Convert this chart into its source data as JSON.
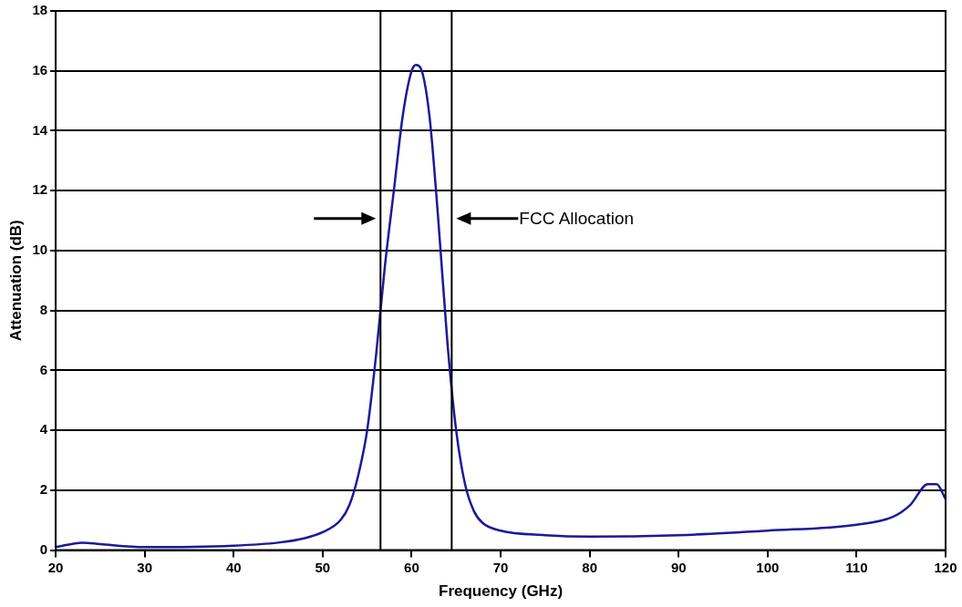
{
  "chart_data": {
    "type": "line",
    "xlabel": "Frequency (GHz)",
    "ylabel": "Attenuation (dB)",
    "xlim": [
      20,
      120
    ],
    "xticks": [
      20,
      30,
      40,
      50,
      60,
      70,
      80,
      90,
      100,
      110,
      120
    ],
    "ylim": [
      0,
      18
    ],
    "yticks": [
      0,
      2,
      4,
      6,
      8,
      10,
      12,
      14,
      16,
      18
    ],
    "grid": "y",
    "legend": false,
    "marker": "none",
    "line_style": "solid",
    "series": [
      {
        "color": "#1a1a99",
        "x": [
          20,
          23,
          25,
          30,
          40,
          45,
          48,
          50,
          52,
          53,
          54,
          55,
          56,
          57,
          58,
          59,
          60,
          60.5,
          61,
          62,
          63,
          64,
          65,
          66,
          67,
          68,
          70,
          75,
          80,
          90,
          100,
          110,
          114,
          116,
          118,
          119,
          120
        ],
        "values": [
          0.1,
          0.25,
          0.2,
          0.1,
          0.15,
          0.25,
          0.4,
          0.6,
          1.0,
          1.5,
          2.5,
          4,
          6.5,
          9.5,
          12,
          14.5,
          16,
          16.2,
          16.1,
          14.5,
          11,
          7,
          4,
          2.2,
          1.3,
          0.9,
          0.65,
          0.5,
          0.45,
          0.5,
          0.65,
          0.85,
          1.1,
          1.5,
          2.2,
          2.2,
          1.7
        ]
      }
    ],
    "ref_lines": [
      {
        "axis": "x",
        "value": 56.5,
        "color": "#000000"
      },
      {
        "axis": "x",
        "value": 64.5,
        "color": "#000000"
      }
    ],
    "annotations": [
      "FCC Allocation"
    ]
  }
}
